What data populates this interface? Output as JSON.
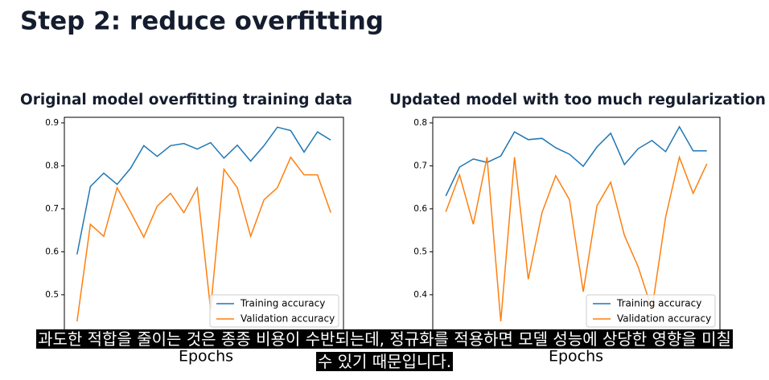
{
  "slide_title": "Step 2: reduce overfitting",
  "subtitles": [
    "과도한 적합을 줄이는 것은 종종 비용이 수반되는데, 정규화를 적용하면 모델 성능에 상당한 영향을 미칠",
    "수 있기 때문입니다."
  ],
  "chart_data": [
    {
      "type": "line",
      "title": "Original model overfitting training data",
      "xlabel": "Epochs",
      "x": [
        0,
        1,
        2,
        3,
        4,
        5,
        6,
        7,
        8,
        9,
        10,
        11,
        12,
        13,
        14,
        15,
        16,
        17,
        18,
        19
      ],
      "xlim": [
        -0.95,
        19.95
      ],
      "ylim": [
        0.41,
        0.913
      ],
      "yticks": [
        0.5,
        0.6,
        0.7,
        0.8,
        0.9
      ],
      "legend": "lower right",
      "series": [
        {
          "name": "Training accuracy",
          "color": "#1f77b4",
          "values": [
            0.594,
            0.752,
            0.783,
            0.757,
            0.794,
            0.847,
            0.822,
            0.847,
            0.852,
            0.839,
            0.854,
            0.818,
            0.848,
            0.811,
            0.847,
            0.89,
            0.882,
            0.832,
            0.879,
            0.86
          ]
        },
        {
          "name": "Validation accuracy",
          "color": "#ff7f0e",
          "values": [
            0.438,
            0.664,
            0.636,
            0.749,
            0.693,
            0.634,
            0.706,
            0.736,
            0.691,
            0.749,
            0.466,
            0.792,
            0.749,
            0.636,
            0.721,
            0.749,
            0.82,
            0.779,
            0.779,
            0.691
          ]
        }
      ]
    },
    {
      "type": "line",
      "title": "Updated model with too much regularization",
      "xlabel": "Epochs",
      "x": [
        0,
        1,
        2,
        3,
        4,
        5,
        6,
        7,
        8,
        9,
        10,
        11,
        12,
        13,
        14,
        15,
        16,
        17,
        18,
        19
      ],
      "xlim": [
        -0.95,
        19.95
      ],
      "ylim": [
        0.31,
        0.813
      ],
      "yticks": [
        0.4,
        0.5,
        0.6,
        0.7,
        0.8
      ],
      "legend": "lower right",
      "series": [
        {
          "name": "Training accuracy",
          "color": "#1f77b4",
          "values": [
            0.63,
            0.697,
            0.716,
            0.708,
            0.723,
            0.779,
            0.761,
            0.764,
            0.742,
            0.727,
            0.699,
            0.744,
            0.776,
            0.703,
            0.74,
            0.759,
            0.733,
            0.791,
            0.735,
            0.735
          ]
        },
        {
          "name": "Validation accuracy",
          "color": "#ff7f0e",
          "values": [
            0.593,
            0.679,
            0.564,
            0.72,
            0.338,
            0.72,
            0.436,
            0.591,
            0.677,
            0.621,
            0.407,
            0.607,
            0.662,
            0.538,
            0.465,
            0.366,
            0.581,
            0.72,
            0.636,
            0.705
          ]
        }
      ]
    }
  ]
}
